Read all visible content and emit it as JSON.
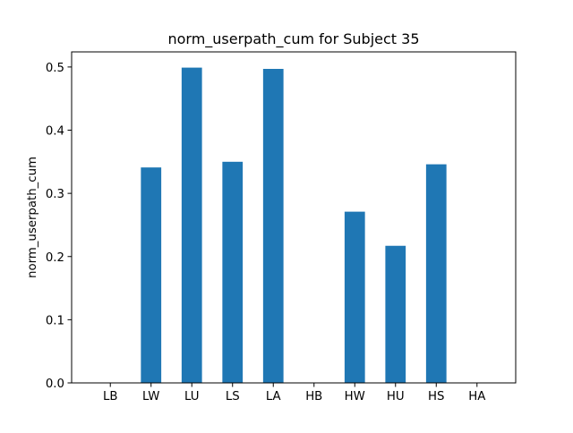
{
  "chart_data": {
    "type": "bar",
    "title": "norm_userpath_cum for Subject 35",
    "xlabel": "",
    "ylabel": "norm_userpath_cum",
    "categories": [
      "LB",
      "LW",
      "LU",
      "LS",
      "LA",
      "HB",
      "HW",
      "HU",
      "HS",
      "HA"
    ],
    "values": [
      0,
      0.341,
      0.499,
      0.35,
      0.497,
      0,
      0.271,
      0.217,
      0.346,
      0
    ],
    "ylim": [
      0,
      0.5239
    ],
    "yticks": [
      "0.0",
      "0.1",
      "0.2",
      "0.3",
      "0.4",
      "0.5"
    ],
    "bar_color": "#1f77b4",
    "grid": false,
    "legend": "none"
  }
}
